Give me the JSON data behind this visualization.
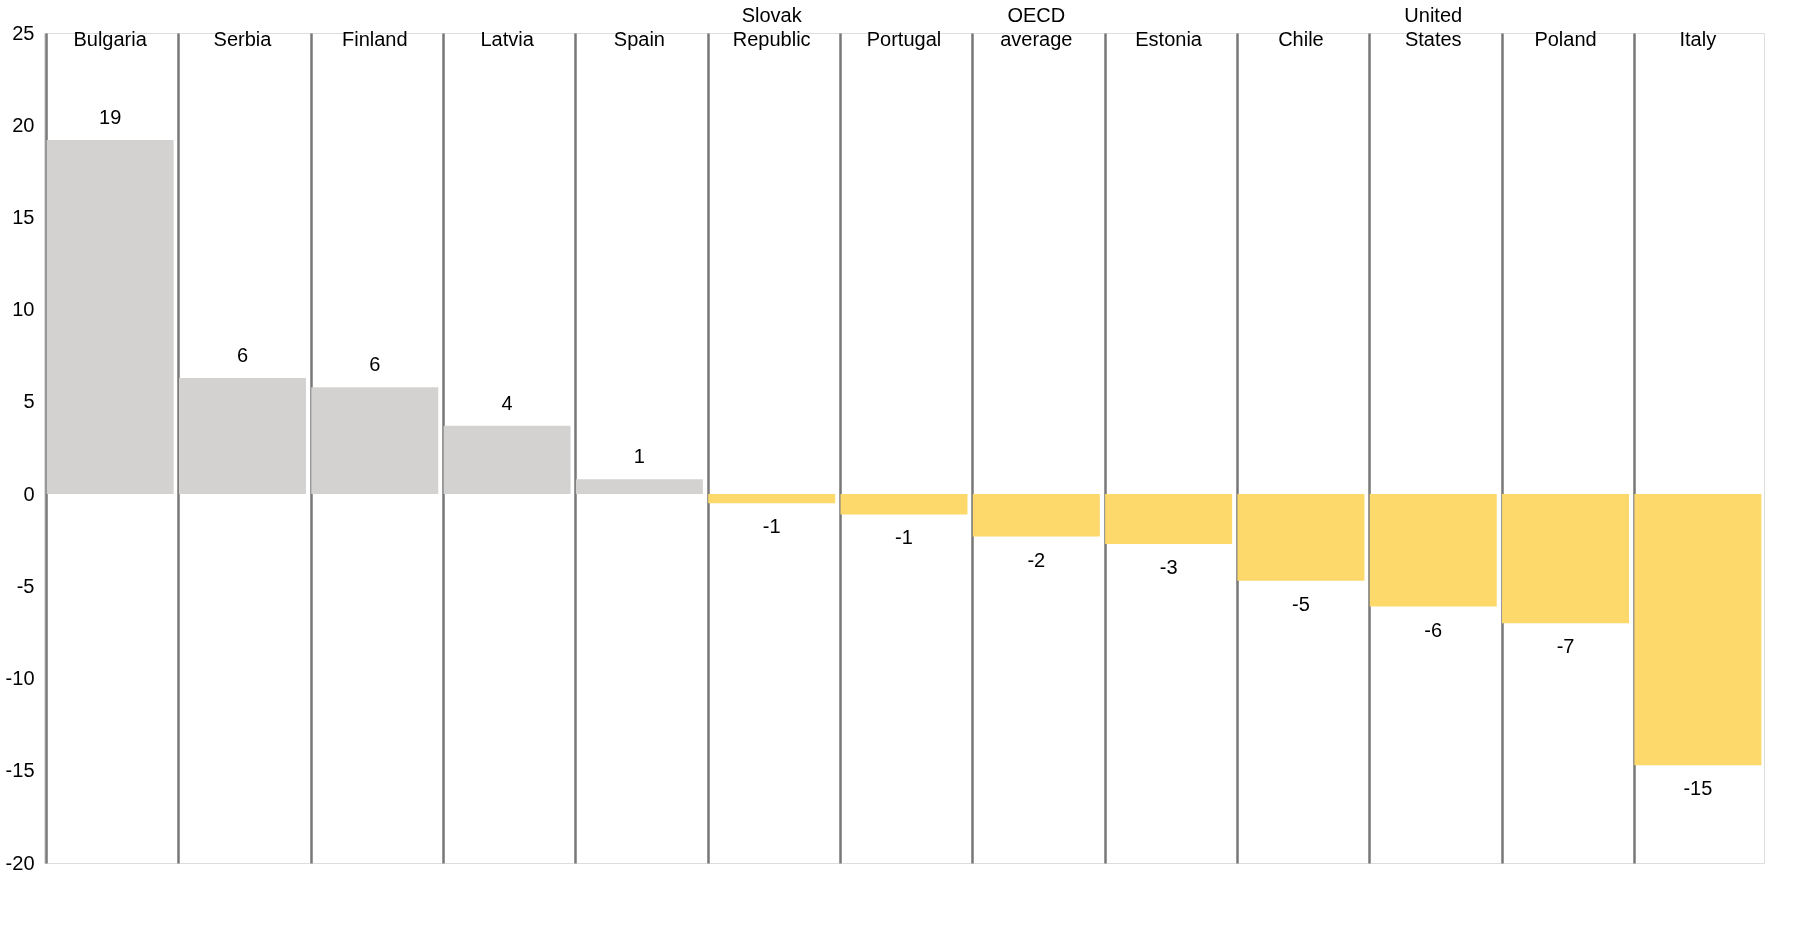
{
  "chart_data": {
    "type": "bar",
    "categories": [
      "Bulgaria",
      "Serbia",
      "Finland",
      "Latvia",
      "Spain",
      "Slovak Republic",
      "Portugal",
      "OECD average",
      "Estonia",
      "Chile",
      "United States",
      "Poland",
      "Italy"
    ],
    "values": [
      19.2,
      6.3,
      5.8,
      3.7,
      0.8,
      -0.5,
      -1.1,
      -2.3,
      -2.7,
      -4.7,
      -6.1,
      -7.0,
      -14.7
    ],
    "value_labels": [
      "19",
      "6",
      "6",
      "4",
      "1",
      "-1",
      "-1",
      "-2",
      "-3",
      "-5",
      "-6",
      "-7",
      "-15"
    ],
    "colors": [
      "#d3d2d0",
      "#d3d2d0",
      "#d3d2d0",
      "#d3d2d0",
      "#d3d2d0",
      "#fdd96b",
      "#fdd96b",
      "#fdd96b",
      "#fdd96b",
      "#fdd96b",
      "#fdd96b",
      "#fdd96b",
      "#fdd96b"
    ],
    "ylim": [
      -20,
      25
    ],
    "yticks": [
      -20,
      -15,
      -10,
      -5,
      0,
      5,
      10,
      15,
      20,
      25
    ],
    "grid": "x"
  }
}
